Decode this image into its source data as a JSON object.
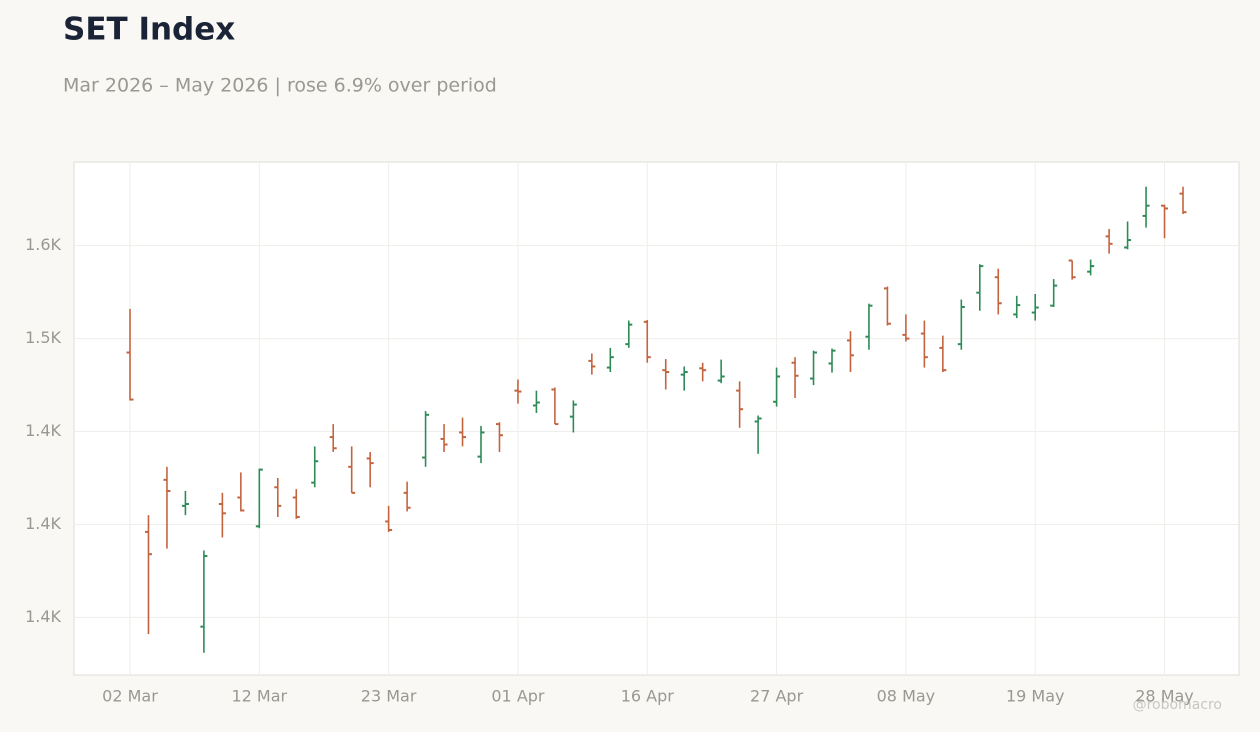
{
  "chart_data": {
    "type": "ohlc",
    "title": "SET Index",
    "subtitle": "Mar 2026 – May 2026 | rose 6.9% over period",
    "watermark": "@robomacro",
    "up_color": "#2e8b57",
    "down_color": "#c4643f",
    "grid": true,
    "categories": [
      "02 Mar",
      null,
      null,
      null,
      null,
      null,
      null,
      "12 Mar",
      null,
      null,
      null,
      null,
      null,
      null,
      "23 Mar",
      null,
      null,
      null,
      null,
      null,
      null,
      "01 Apr",
      null,
      null,
      null,
      null,
      null,
      null,
      "16 Apr",
      null,
      null,
      null,
      null,
      null,
      null,
      "27 Apr",
      null,
      null,
      null,
      null,
      null,
      null,
      "08 May",
      null,
      null,
      null,
      null,
      null,
      null,
      "19 May",
      null,
      null,
      null,
      null,
      null,
      null,
      "28 May",
      null
    ],
    "open": [
      1492.5,
      1396,
      1424,
      1410,
      1345,
      1411,
      1414.5,
      1399,
      1420,
      1414.5,
      1422.5,
      1447,
      1431,
      1435.5,
      1401.6,
      1417,
      1436,
      1446,
      1449.5,
      1436.5,
      1454,
      1472,
      1464,
      1472.6,
      1458,
      1488,
      1484.4,
      1497,
      1509,
      1483,
      1480.6,
      1484,
      1477.4,
      1472,
      1455.4,
      1466,
      1487,
      1478.5,
      1486.6,
      1499,
      1501,
      1527,
      1502,
      1502.7,
      1495,
      1497,
      1524.7,
      1533,
      1513,
      1514,
      1517.7,
      1542,
      1536,
      1555,
      1549,
      1566,
      1571.5,
      1578
    ],
    "high": [
      1516,
      1405,
      1431,
      1418,
      1386,
      1417,
      1428,
      1430,
      1425,
      1419,
      1442,
      1454,
      1442,
      1439,
      1410,
      1423,
      1461,
      1454,
      1457.5,
      1453,
      1455,
      1478,
      1472,
      1473.7,
      1466.7,
      1492,
      1495,
      1509.7,
      1510,
      1489,
      1485,
      1487,
      1488.7,
      1477,
      1458.6,
      1484.4,
      1490,
      1493.5,
      1494.6,
      1504,
      1518.8,
      1528,
      1513,
      1509.7,
      1501.6,
      1521,
      1540,
      1537.6,
      1523,
      1524,
      1532,
      1542,
      1542.5,
      1559,
      1563,
      1581.7,
      1572,
      1581.7
    ],
    "low": [
      1466.7,
      1341,
      1387,
      1405,
      1331,
      1393,
      1407,
      1398,
      1404,
      1403,
      1420,
      1439,
      1417,
      1420,
      1396,
      1407,
      1431,
      1439,
      1442,
      1433,
      1439,
      1465,
      1460,
      1454,
      1449.5,
      1480.6,
      1482,
      1495,
      1487,
      1472.6,
      1472,
      1477,
      1476,
      1452,
      1438,
      1463.4,
      1468,
      1475,
      1481.7,
      1482,
      1494,
      1507,
      1498.4,
      1484.4,
      1482,
      1494,
      1515,
      1513,
      1511,
      1509.7,
      1517,
      1531.7,
      1534,
      1545.7,
      1548,
      1559.7,
      1554,
      1567
    ],
    "close": [
      1467.2,
      1384,
      1418,
      1411,
      1383,
      1406,
      1407.5,
      1429.5,
      1410,
      1404,
      1434,
      1441,
      1417,
      1433,
      1397,
      1409,
      1459,
      1443,
      1447,
      1449.5,
      1448,
      1471.5,
      1465.6,
      1454,
      1464.5,
      1485,
      1490,
      1507.5,
      1490,
      1482,
      1482,
      1483,
      1479.6,
      1462,
      1457,
      1479.6,
      1480,
      1492.5,
      1493.5,
      1491,
      1517.7,
      1508,
      1500,
      1490,
      1483,
      1517,
      1539,
      1519,
      1518,
      1516.7,
      1528.5,
      1533,
      1539,
      1551,
      1553,
      1571.5,
      1570,
      1568
    ],
    "ylim": [
      1319,
      1595
    ],
    "yticks": [
      {
        "value": 1350,
        "label": "1.4K"
      },
      {
        "value": 1400,
        "label": "1.4K"
      },
      {
        "value": 1450,
        "label": "1.4K"
      },
      {
        "value": 1500,
        "label": "1.5K"
      },
      {
        "value": 1550,
        "label": "1.6K"
      }
    ]
  }
}
